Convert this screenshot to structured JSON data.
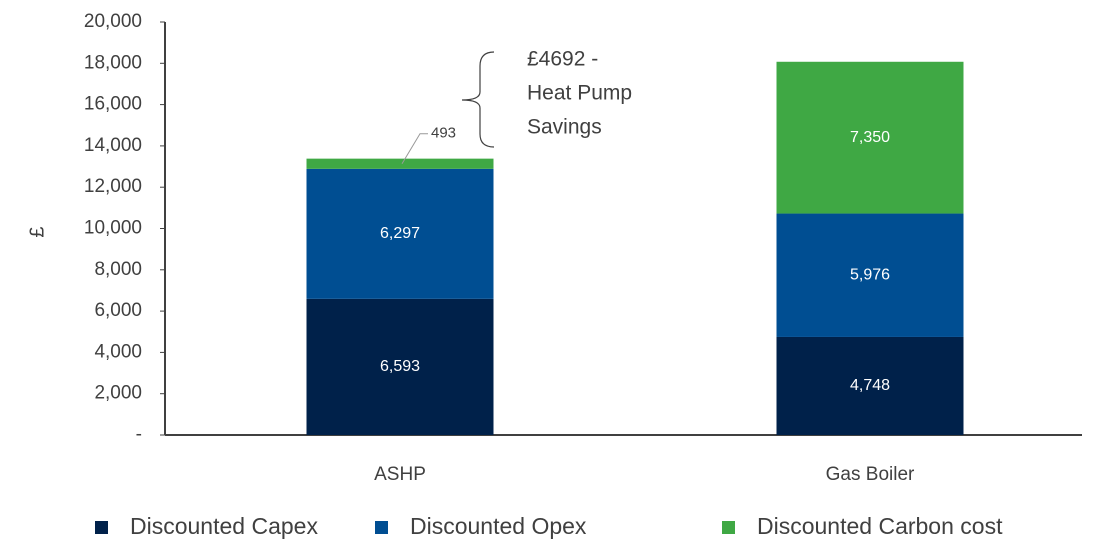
{
  "chart_data": {
    "type": "stacked_bar",
    "categories": [
      "ASHP",
      "Gas Boiler"
    ],
    "series": [
      {
        "name": "Discounted Capex",
        "color": "#00214a",
        "values": [
          6593,
          4748
        ],
        "value_labels": [
          "6,593",
          "4,748"
        ]
      },
      {
        "name": "Discounted Opex",
        "color": "#004e92",
        "values": [
          6297,
          5976
        ],
        "value_labels": [
          "6,297",
          "5,976"
        ]
      },
      {
        "name": "Discounted Carbon cost",
        "color": "#3fa844",
        "values": [
          493,
          7350
        ],
        "value_labels": [
          "493",
          "7,350"
        ]
      }
    ],
    "ylabel": "£",
    "ylim": [
      0,
      20000
    ],
    "yticks": [
      {
        "value": 0,
        "label": "-"
      },
      {
        "value": 2000,
        "label": "2,000"
      },
      {
        "value": 4000,
        "label": "4,000"
      },
      {
        "value": 6000,
        "label": "6,000"
      },
      {
        "value": 8000,
        "label": "8,000"
      },
      {
        "value": 10000,
        "label": "10,000"
      },
      {
        "value": 12000,
        "label": "12,000"
      },
      {
        "value": 14000,
        "label": "14,000"
      },
      {
        "value": 16000,
        "label": "16,000"
      },
      {
        "value": 18000,
        "label": "18,000"
      },
      {
        "value": 20000,
        "label": "20,000"
      }
    ],
    "annotation": [
      "£4692 -",
      "Heat Pump",
      "Savings"
    ],
    "legend": "bottom"
  }
}
